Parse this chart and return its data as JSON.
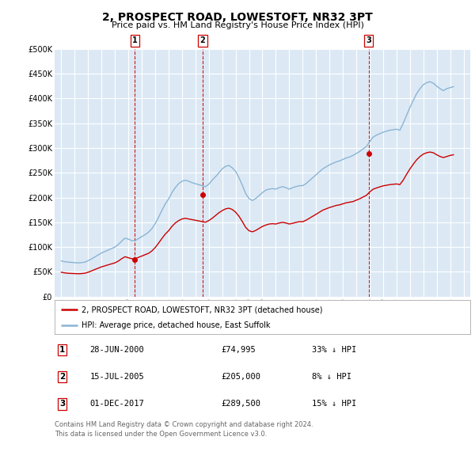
{
  "title": "2, PROSPECT ROAD, LOWESTOFT, NR32 3PT",
  "subtitle": "Price paid vs. HM Land Registry's House Price Index (HPI)",
  "ylim": [
    0,
    500000
  ],
  "yticks": [
    0,
    50000,
    100000,
    150000,
    200000,
    250000,
    300000,
    350000,
    400000,
    450000,
    500000
  ],
  "xlim_start": 1994.5,
  "xlim_end": 2025.5,
  "plot_bg_color": "#dce9f5",
  "grid_color": "#ffffff",
  "sale_color": "#cc0000",
  "hpi_color": "#8ab4d4",
  "legend_entries": [
    "2, PROSPECT ROAD, LOWESTOFT, NR32 3PT (detached house)",
    "HPI: Average price, detached house, East Suffolk"
  ],
  "transactions": [
    {
      "num": 1,
      "date": "28-JUN-2000",
      "price": 74995,
      "note": "33% ↓ HPI",
      "year": 2000.49
    },
    {
      "num": 2,
      "date": "15-JUL-2005",
      "price": 205000,
      "note": "8% ↓ HPI",
      "year": 2005.54
    },
    {
      "num": 3,
      "date": "01-DEC-2017",
      "price": 289500,
      "note": "15% ↓ HPI",
      "year": 2017.92
    }
  ],
  "footer": "Contains HM Land Registry data © Crown copyright and database right 2024.\nThis data is licensed under the Open Government Licence v3.0.",
  "hpi_data_years": [
    1995.0,
    1995.25,
    1995.5,
    1995.75,
    1996.0,
    1996.25,
    1996.5,
    1996.75,
    1997.0,
    1997.25,
    1997.5,
    1997.75,
    1998.0,
    1998.25,
    1998.5,
    1998.75,
    1999.0,
    1999.25,
    1999.5,
    1999.75,
    2000.0,
    2000.25,
    2000.5,
    2000.75,
    2001.0,
    2001.25,
    2001.5,
    2001.75,
    2002.0,
    2002.25,
    2002.5,
    2002.75,
    2003.0,
    2003.25,
    2003.5,
    2003.75,
    2004.0,
    2004.25,
    2004.5,
    2004.75,
    2005.0,
    2005.25,
    2005.5,
    2005.75,
    2006.0,
    2006.25,
    2006.5,
    2006.75,
    2007.0,
    2007.25,
    2007.5,
    2007.75,
    2008.0,
    2008.25,
    2008.5,
    2008.75,
    2009.0,
    2009.25,
    2009.5,
    2009.75,
    2010.0,
    2010.25,
    2010.5,
    2010.75,
    2011.0,
    2011.25,
    2011.5,
    2011.75,
    2012.0,
    2012.25,
    2012.5,
    2012.75,
    2013.0,
    2013.25,
    2013.5,
    2013.75,
    2014.0,
    2014.25,
    2014.5,
    2014.75,
    2015.0,
    2015.25,
    2015.5,
    2015.75,
    2016.0,
    2016.25,
    2016.5,
    2016.75,
    2017.0,
    2017.25,
    2017.5,
    2017.75,
    2018.0,
    2018.25,
    2018.5,
    2018.75,
    2019.0,
    2019.25,
    2019.5,
    2019.75,
    2020.0,
    2020.25,
    2020.5,
    2020.75,
    2021.0,
    2021.25,
    2021.5,
    2021.75,
    2022.0,
    2022.25,
    2022.5,
    2022.75,
    2023.0,
    2023.25,
    2023.5,
    2023.75,
    2024.0,
    2024.25
  ],
  "hpi_data_values": [
    72000,
    70500,
    69500,
    69000,
    68500,
    68000,
    68500,
    69500,
    72500,
    76000,
    80000,
    84000,
    88000,
    91000,
    94000,
    97000,
    100000,
    105000,
    112000,
    118000,
    116000,
    113000,
    113000,
    117000,
    121000,
    125000,
    130000,
    137000,
    147000,
    160000,
    174000,
    187000,
    197000,
    210000,
    220000,
    228000,
    233000,
    235000,
    233000,
    230000,
    228000,
    226000,
    224000,
    222000,
    227000,
    235000,
    242000,
    250000,
    258000,
    263000,
    265000,
    260000,
    253000,
    240000,
    225000,
    208000,
    198000,
    194000,
    198000,
    204000,
    210000,
    215000,
    217000,
    218000,
    217000,
    220000,
    222000,
    220000,
    217000,
    220000,
    222000,
    224000,
    224000,
    228000,
    234000,
    240000,
    246000,
    252000,
    258000,
    262000,
    266000,
    269000,
    272000,
    274000,
    277000,
    280000,
    282000,
    285000,
    289000,
    293000,
    298000,
    303000,
    313000,
    322000,
    326000,
    329000,
    332000,
    334000,
    336000,
    337000,
    338000,
    336000,
    350000,
    366000,
    382000,
    396000,
    410000,
    420000,
    428000,
    432000,
    434000,
    431000,
    425000,
    420000,
    416000,
    420000,
    422000,
    424000
  ],
  "sale_data_years": [
    1995.0,
    1995.25,
    1995.5,
    1995.75,
    1996.0,
    1996.25,
    1996.5,
    1996.75,
    1997.0,
    1997.25,
    1997.5,
    1997.75,
    1998.0,
    1998.25,
    1998.5,
    1998.75,
    1999.0,
    1999.25,
    1999.5,
    1999.75,
    2000.0,
    2000.25,
    2000.5,
    2000.75,
    2001.0,
    2001.25,
    2001.5,
    2001.75,
    2002.0,
    2002.25,
    2002.5,
    2002.75,
    2003.0,
    2003.25,
    2003.5,
    2003.75,
    2004.0,
    2004.25,
    2004.5,
    2004.75,
    2005.0,
    2005.25,
    2005.5,
    2005.75,
    2006.0,
    2006.25,
    2006.5,
    2006.75,
    2007.0,
    2007.25,
    2007.5,
    2007.75,
    2008.0,
    2008.25,
    2008.5,
    2008.75,
    2009.0,
    2009.25,
    2009.5,
    2009.75,
    2010.0,
    2010.25,
    2010.5,
    2010.75,
    2011.0,
    2011.25,
    2011.5,
    2011.75,
    2012.0,
    2012.25,
    2012.5,
    2012.75,
    2013.0,
    2013.25,
    2013.5,
    2013.75,
    2014.0,
    2014.25,
    2014.5,
    2014.75,
    2015.0,
    2015.25,
    2015.5,
    2015.75,
    2016.0,
    2016.25,
    2016.5,
    2016.75,
    2017.0,
    2017.25,
    2017.5,
    2017.75,
    2018.0,
    2018.25,
    2018.5,
    2018.75,
    2019.0,
    2019.25,
    2019.5,
    2019.75,
    2020.0,
    2020.25,
    2020.5,
    2020.75,
    2021.0,
    2021.25,
    2021.5,
    2021.75,
    2022.0,
    2022.25,
    2022.5,
    2022.75,
    2023.0,
    2023.25,
    2023.5,
    2023.75,
    2024.0,
    2024.25
  ],
  "sale_data_values": [
    49000,
    47900,
    47000,
    46700,
    46400,
    46100,
    46400,
    47100,
    49100,
    51800,
    54600,
    57300,
    60000,
    62000,
    64100,
    66100,
    68100,
    71600,
    76400,
    80400,
    78400,
    76400,
    76400,
    79100,
    81800,
    84600,
    87200,
    92000,
    98900,
    107800,
    117200,
    126100,
    132900,
    141700,
    148600,
    153400,
    156700,
    158100,
    156700,
    155400,
    154100,
    152800,
    151400,
    150100,
    153500,
    158100,
    163600,
    169200,
    173700,
    177100,
    178500,
    175900,
    170400,
    162200,
    151400,
    139700,
    132900,
    130800,
    133500,
    137600,
    141700,
    144400,
    146500,
    147200,
    146500,
    148600,
    149900,
    148600,
    146500,
    147900,
    149900,
    151200,
    151200,
    154100,
    158100,
    162200,
    166200,
    170400,
    174500,
    177200,
    179800,
    181900,
    184000,
    185200,
    187300,
    189400,
    190600,
    191800,
    194700,
    197400,
    201000,
    204400,
    211200,
    216800,
    219300,
    221500,
    223600,
    224800,
    226100,
    226800,
    227500,
    226100,
    235200,
    246900,
    257800,
    267300,
    276200,
    282900,
    287800,
    290500,
    291900,
    290500,
    286400,
    282900,
    280800,
    282900,
    285100,
    286400
  ]
}
